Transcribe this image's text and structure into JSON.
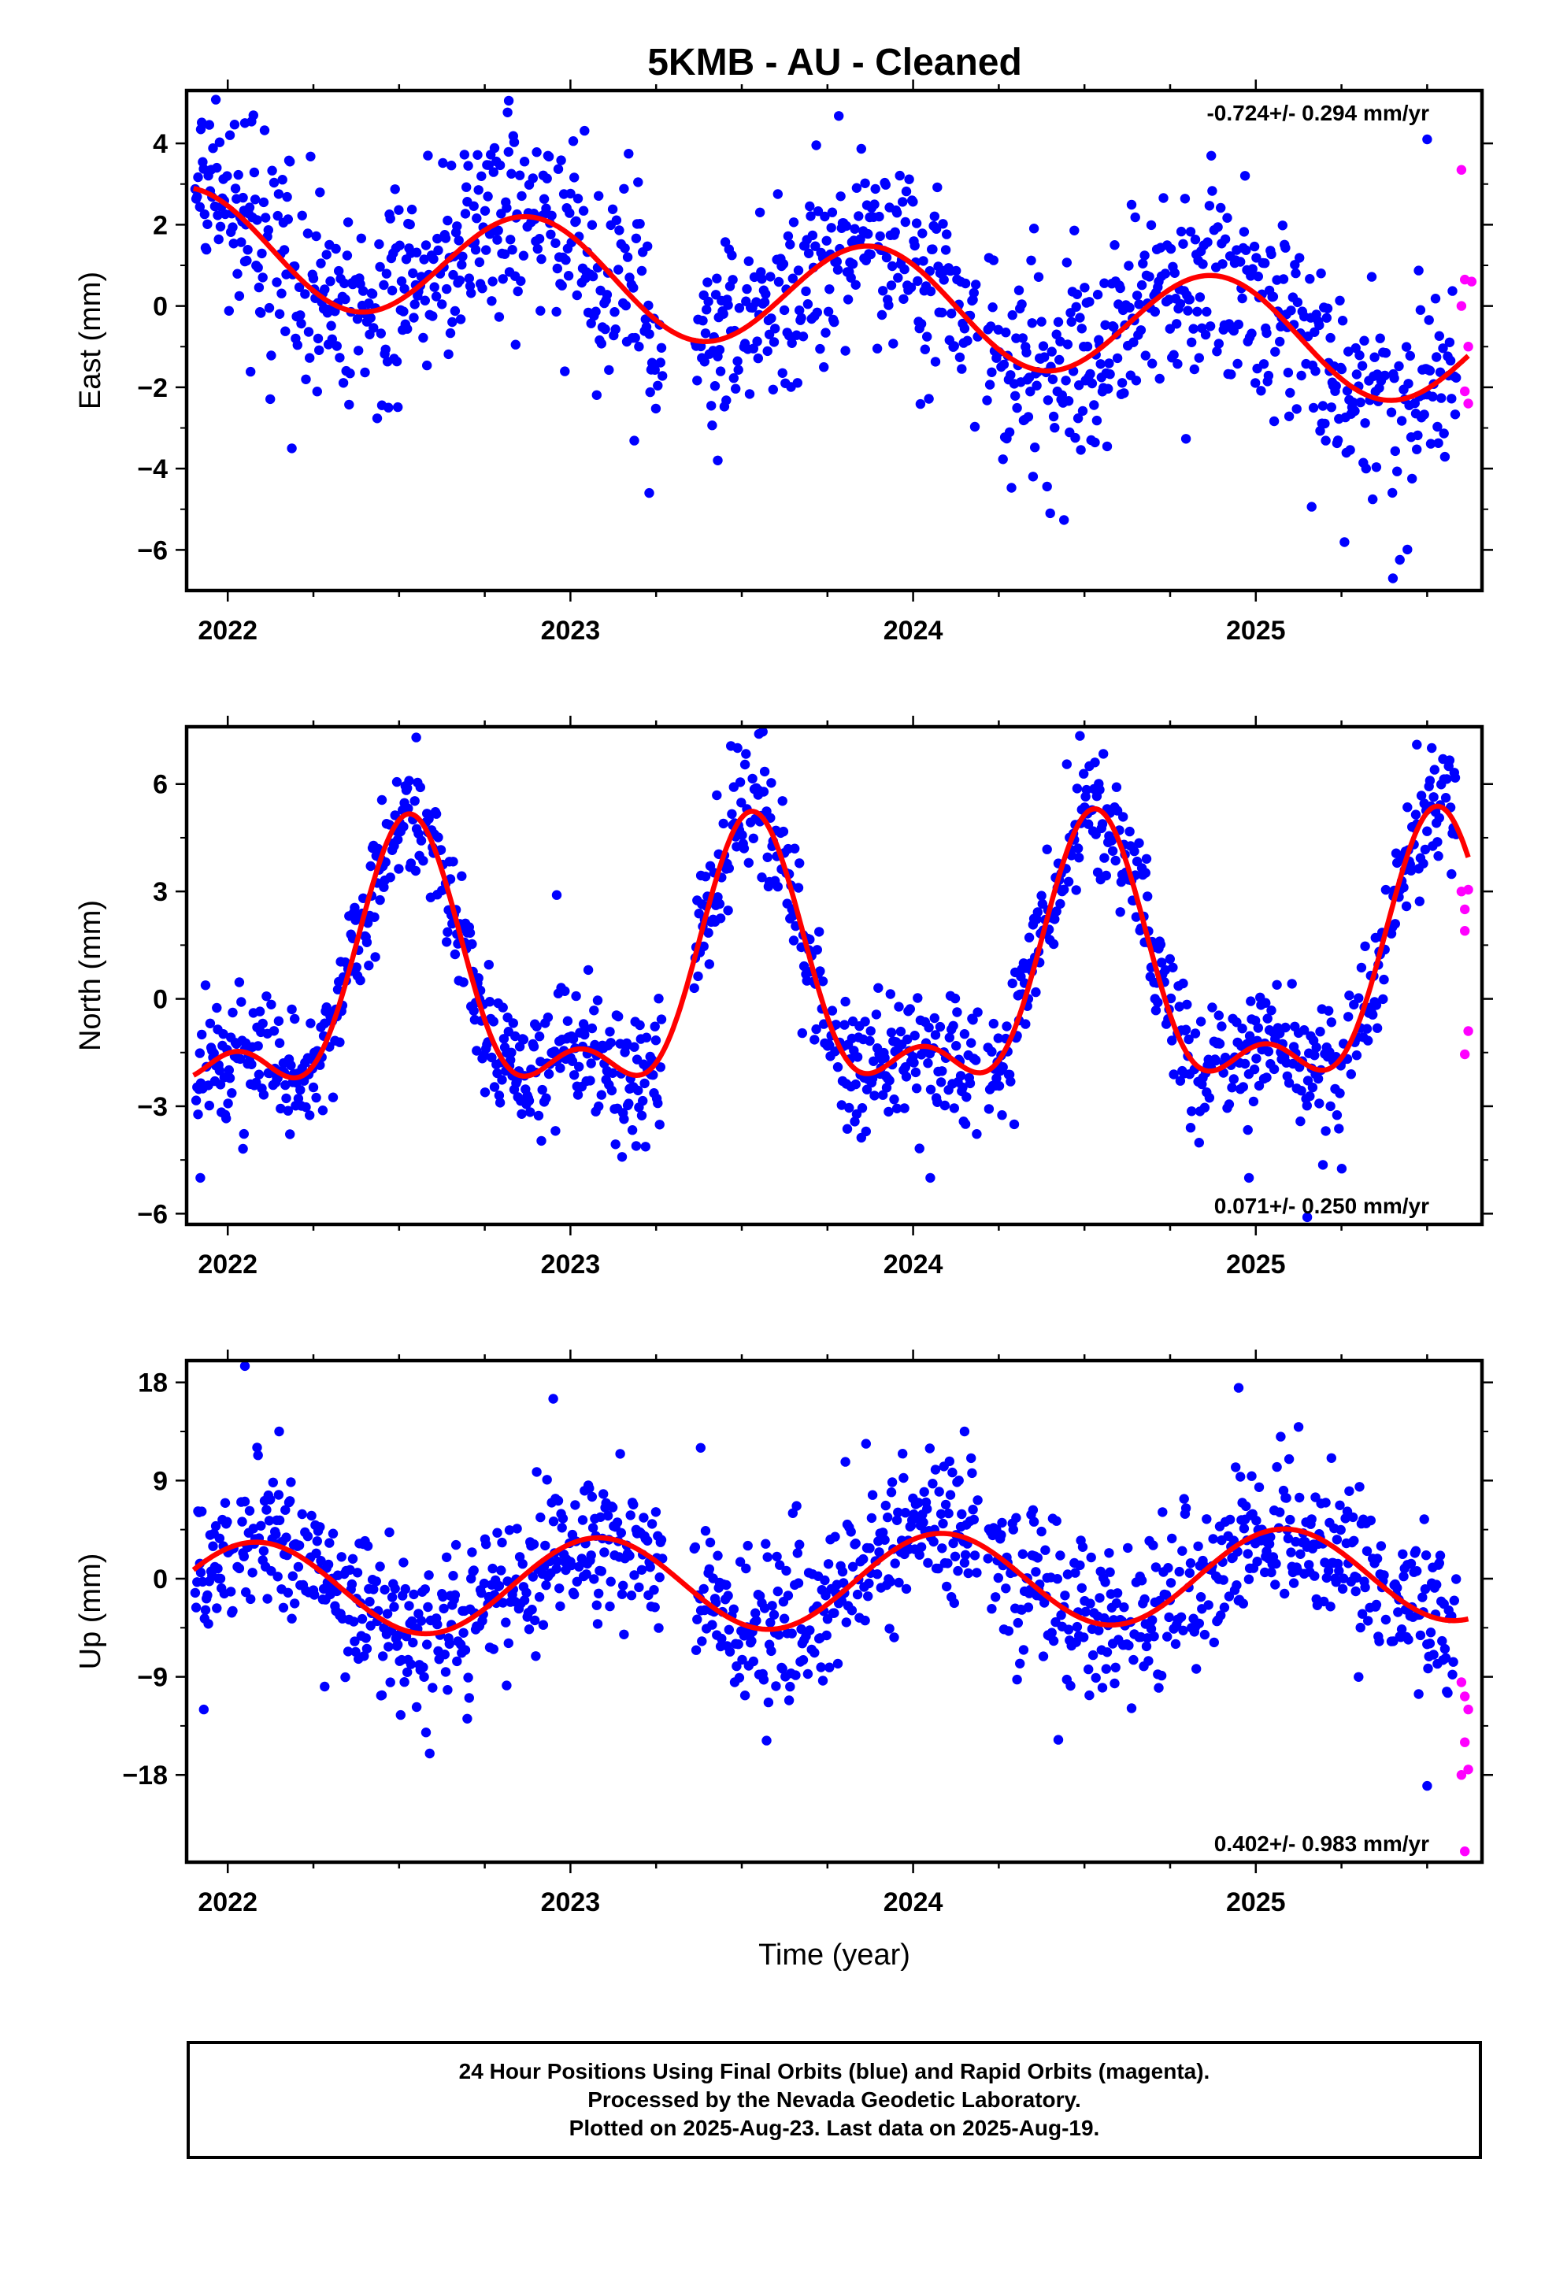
{
  "chart_data": [
    {
      "type": "scatter",
      "panel": "east",
      "title": "5KMB  - AU - Cleaned",
      "ylabel": "East (mm)",
      "xlabel": "",
      "xlim": [
        2021.88,
        2025.66
      ],
      "ylim": [
        -7,
        5.3
      ],
      "yticks": [
        -6,
        -4,
        -2,
        0,
        2,
        4
      ],
      "xticks": [
        2022,
        2023,
        2024,
        2025
      ],
      "rate_text": "-0.724+/- 0.294 mm/yr",
      "rate_position": "top-right",
      "fit": {
        "offset": 0.25,
        "trend": -0.724,
        "annual_amp": 1.35,
        "annual_peak": 2022.88,
        "semi_amp": 0.0,
        "semi_peak": 2022.5,
        "t0": 2023.7
      },
      "scatter_sigma": 1.25,
      "outliers": [
        [
          2022.05,
          4.5
        ],
        [
          2022.82,
          5.05
        ],
        [
          2022.84,
          -0.95
        ],
        [
          2023.23,
          -4.6
        ],
        [
          2023.43,
          -3.8
        ],
        [
          2024.4,
          -5.1
        ],
        [
          2025.4,
          -6.7
        ],
        [
          2025.5,
          4.1
        ]
      ],
      "rapid_points": [
        [
          2025.6,
          3.35
        ],
        [
          2025.61,
          0.65
        ],
        [
          2025.6,
          0.0
        ],
        [
          2025.62,
          -1.0
        ],
        [
          2025.61,
          -2.1
        ],
        [
          2025.62,
          -2.4
        ],
        [
          2025.63,
          0.6
        ]
      ],
      "fit_color": "#ff0000",
      "final_color": "#0000ff",
      "rapid_color": "#ff00ff"
    },
    {
      "type": "scatter",
      "panel": "north",
      "title": "",
      "ylabel": "North (mm)",
      "xlabel": "",
      "xlim": [
        2021.88,
        2025.66
      ],
      "ylim": [
        -6.3,
        7.6
      ],
      "yticks": [
        -6,
        -3,
        0,
        3,
        6
      ],
      "xticks": [
        2022,
        2023,
        2024,
        2025
      ],
      "rate_text": "0.071+/- 0.250 mm/yr",
      "rate_position": "bottom-right",
      "fit": {
        "offset": 0.35,
        "trend": 0.071,
        "annual_amp": 3.3,
        "annual_peak": 2022.53,
        "semi_amp": 1.6,
        "semi_peak": 2022.53,
        "t0": 2023.7
      },
      "scatter_sigma": 0.9,
      "outliers": [
        [
          2021.92,
          -5.0
        ],
        [
          2022.55,
          7.3
        ],
        [
          2022.96,
          2.9
        ],
        [
          2023.55,
          7.4
        ],
        [
          2024.05,
          -5.0
        ],
        [
          2024.98,
          -5.0
        ],
        [
          2025.15,
          -6.1
        ],
        [
          2025.47,
          7.1
        ]
      ],
      "rapid_points": [
        [
          2025.6,
          3.0
        ],
        [
          2025.61,
          2.5
        ],
        [
          2025.62,
          3.05
        ],
        [
          2025.61,
          1.9
        ],
        [
          2025.62,
          -0.9
        ],
        [
          2025.61,
          -1.55
        ]
      ],
      "fit_color": "#ff0000",
      "final_color": "#0000ff",
      "rapid_color": "#ff00ff"
    },
    {
      "type": "scatter",
      "panel": "up",
      "title": "",
      "ylabel": "Up (mm)",
      "xlabel": "Time (year)",
      "xlim": [
        2021.88,
        2025.66
      ],
      "ylim": [
        -26,
        20
      ],
      "yticks": [
        -18,
        -9,
        0,
        9,
        18
      ],
      "xticks": [
        2022,
        2023,
        2024,
        2025
      ],
      "rate_text": "0.402+/- 0.983 mm/yr",
      "rate_position": "bottom-right",
      "fit": {
        "offset": -0.3,
        "trend": 0.402,
        "annual_amp": 4.3,
        "annual_peak": 2023.08,
        "semi_amp": 0.0,
        "semi_peak": 2022.5,
        "t0": 2023.7
      },
      "scatter_sigma": 3.6,
      "outliers": [
        [
          2021.93,
          -12.0
        ],
        [
          2022.05,
          19.5
        ],
        [
          2022.15,
          13.5
        ],
        [
          2022.95,
          16.5
        ],
        [
          2023.38,
          12.0
        ],
        [
          2024.15,
          13.5
        ],
        [
          2024.95,
          17.5
        ],
        [
          2025.5,
          -19.0
        ]
      ],
      "rapid_points": [
        [
          2025.6,
          -9.5
        ],
        [
          2025.61,
          -10.8
        ],
        [
          2025.62,
          -12.0
        ],
        [
          2025.61,
          -15.0
        ],
        [
          2025.62,
          -17.5
        ],
        [
          2025.6,
          -18.0
        ],
        [
          2025.61,
          -25.0
        ]
      ],
      "fit_color": "#ff0000",
      "final_color": "#0000ff",
      "rapid_color": "#ff00ff"
    }
  ],
  "footer": {
    "line1": "24 Hour Positions Using Final Orbits (blue) and Rapid Orbits (magenta).",
    "line2": "Processed by the Nevada Geodetic Laboratory.",
    "line3": "Plotted on 2025-Aug-23. Last data on 2025-Aug-19."
  }
}
